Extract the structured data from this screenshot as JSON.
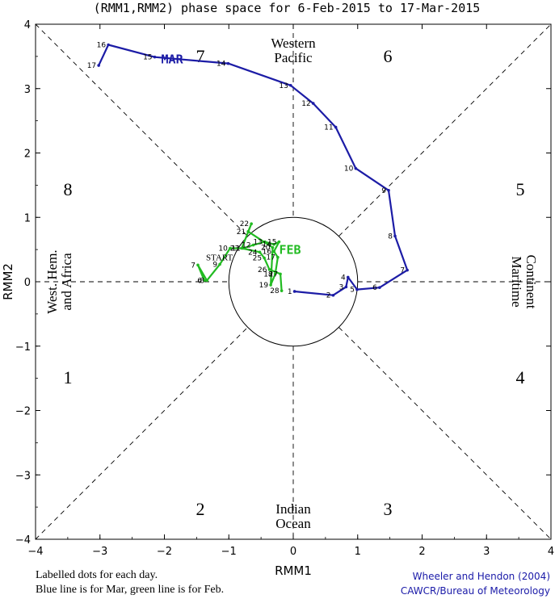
{
  "chart_data": {
    "type": "line",
    "title": "(RMM1,RMM2) phase space for  6-Feb-2015 to 17-Mar-2015",
    "xlabel": "RMM1",
    "ylabel": "RMM2",
    "xlim": [
      -4,
      4
    ],
    "ylim": [
      -4,
      4
    ],
    "x_ticks": [
      "−4",
      "−3",
      "−2",
      "−1",
      "0",
      "1",
      "2",
      "3",
      "4"
    ],
    "y_ticks": [
      "−4",
      "−3",
      "−2",
      "−1",
      "0",
      "1",
      "2",
      "3",
      "4"
    ],
    "phase_numbers": [
      "1",
      "2",
      "3",
      "4",
      "5",
      "6",
      "7",
      "8"
    ],
    "regions": {
      "west": [
        "West. Hem.",
        "and Africa"
      ],
      "north": [
        "Western",
        "Pacific"
      ],
      "east": [
        "Maritime",
        "Continent"
      ],
      "south": [
        "Indian",
        "Ocean"
      ]
    },
    "start_label": "START",
    "series": [
      {
        "name": "FEB",
        "color": "#22bb22",
        "points": [
          {
            "day": "6",
            "x": -1.38,
            "y": 0.02
          },
          {
            "day": "7",
            "x": -1.48,
            "y": 0.26
          },
          {
            "day": "8",
            "x": -1.34,
            "y": 0.02
          },
          {
            "day": "9",
            "x": -1.14,
            "y": 0.27
          },
          {
            "day": "10",
            "x": -0.98,
            "y": 0.52
          },
          {
            "day": "11",
            "x": -0.78,
            "y": 0.52
          },
          {
            "day": "12",
            "x": -0.62,
            "y": 0.57
          },
          {
            "day": "13",
            "x": -0.44,
            "y": 0.62
          },
          {
            "day": "14",
            "x": -0.3,
            "y": 0.58
          },
          {
            "day": "15",
            "x": -0.22,
            "y": 0.62
          },
          {
            "day": "16",
            "x": -0.3,
            "y": 0.47
          },
          {
            "day": "17",
            "x": -0.24,
            "y": 0.38
          },
          {
            "day": "18",
            "x": -0.28,
            "y": 0.12
          },
          {
            "day": "19",
            "x": -0.35,
            "y": -0.05
          },
          {
            "day": "20",
            "x": -0.32,
            "y": 0.53
          },
          {
            "day": "21",
            "x": -0.7,
            "y": 0.78
          },
          {
            "day": "22",
            "x": -0.65,
            "y": 0.9
          },
          {
            "day": "23",
            "x": -0.8,
            "y": 0.52
          },
          {
            "day": "24",
            "x": -0.52,
            "y": 0.46
          },
          {
            "day": "25",
            "x": -0.45,
            "y": 0.37
          },
          {
            "day": "26",
            "x": -0.37,
            "y": 0.19
          },
          {
            "day": "27",
            "x": -0.2,
            "y": 0.12
          },
          {
            "day": "28",
            "x": -0.18,
            "y": -0.14
          }
        ]
      },
      {
        "name": "MAR",
        "color": "#1c1ca6",
        "points": [
          {
            "day": "1",
            "x": 0.02,
            "y": -0.15
          },
          {
            "day": "2",
            "x": 0.62,
            "y": -0.21
          },
          {
            "day": "3",
            "x": 0.82,
            "y": -0.08
          },
          {
            "day": "4",
            "x": 0.85,
            "y": 0.07
          },
          {
            "day": "5",
            "x": 0.99,
            "y": -0.12
          },
          {
            "day": "6",
            "x": 1.34,
            "y": -0.09
          },
          {
            "day": "7",
            "x": 1.77,
            "y": 0.18
          },
          {
            "day": "8",
            "x": 1.58,
            "y": 0.71
          },
          {
            "day": "9",
            "x": 1.48,
            "y": 1.42
          },
          {
            "day": "10",
            "x": 0.97,
            "y": 1.76
          },
          {
            "day": "11",
            "x": 0.66,
            "y": 2.4
          },
          {
            "day": "12",
            "x": 0.31,
            "y": 2.77
          },
          {
            "day": "13",
            "x": -0.04,
            "y": 3.05
          },
          {
            "day": "14",
            "x": -1.01,
            "y": 3.39
          },
          {
            "day": "15",
            "x": -2.15,
            "y": 3.49
          },
          {
            "day": "16",
            "x": -2.87,
            "y": 3.68
          },
          {
            "day": "17",
            "x": -3.02,
            "y": 3.36
          }
        ]
      }
    ],
    "amplitude_circle_radius": 1
  },
  "footnotes": {
    "line1": "Labelled dots for each day.",
    "line2": "Blue line is for Mar, green line is for Feb."
  },
  "credits": {
    "line1": "Wheeler and Hendon (2004)",
    "line2": "CAWCR/Bureau of Meteorology"
  }
}
